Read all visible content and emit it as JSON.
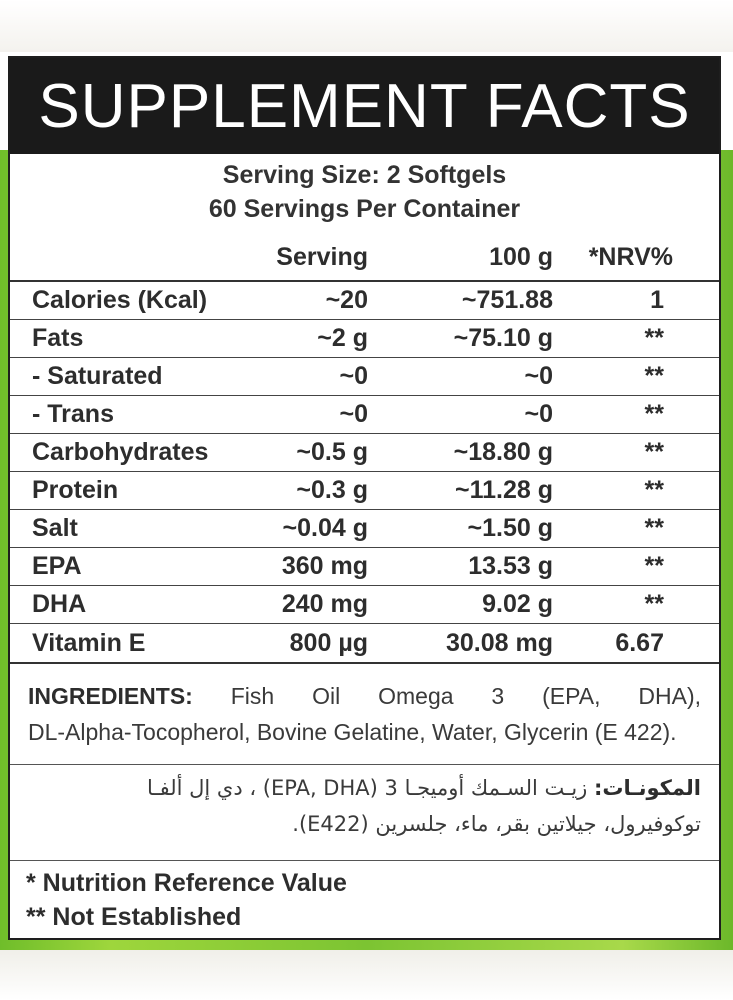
{
  "panel": {
    "title": "SUPPLEMENT FACTS",
    "serving_size": "Serving Size: 2 Softgels",
    "servings_per_container": "60 Servings Per Container"
  },
  "table": {
    "headers": {
      "name": "",
      "serving": "Serving",
      "per100": "100 g",
      "nrv": "*NRV%"
    },
    "rows": [
      {
        "name": "Calories (Kcal)",
        "serving": "~20",
        "per100": "~751.88",
        "nrv": "1"
      },
      {
        "name": "Fats",
        "serving": "~2 g",
        "per100": "~75.10 g",
        "nrv": "**"
      },
      {
        "name": "- Saturated",
        "serving": "~0",
        "per100": "~0",
        "nrv": "**"
      },
      {
        "name": "- Trans",
        "serving": "~0",
        "per100": "~0",
        "nrv": "**"
      },
      {
        "name": "Carbohydrates",
        "serving": "~0.5 g",
        "per100": "~18.80 g",
        "nrv": "**"
      },
      {
        "name": "Protein",
        "serving": "~0.3 g",
        "per100": "~11.28 g",
        "nrv": "**"
      },
      {
        "name": "Salt",
        "serving": "~0.04 g",
        "per100": "~1.50 g",
        "nrv": "**"
      },
      {
        "name": "EPA",
        "serving": "360 mg",
        "per100": "13.53 g",
        "nrv": "**"
      },
      {
        "name": "DHA",
        "serving": "240 mg",
        "per100": "9.02 g",
        "nrv": "**"
      },
      {
        "name": "Vitamin E",
        "serving": "800 µg",
        "per100": "30.08 mg",
        "nrv": "6.67"
      }
    ]
  },
  "ingredients": {
    "label": "INGREDIENTS:",
    "line1": "Fish Oil Omega 3 (EPA, DHA),",
    "line2": "DL-Alpha-Tocopherol, Bovine Gelatine, Water, Glycerin (E 422)."
  },
  "ingredients_ar": {
    "label": "المكونـات:",
    "line1": "زيـت السـمك أوميجـا 3 (EPA, DHA) ، دي إل ألفـا",
    "line2": "توكوفيرول، جيلاتين بقر، ماء، جلسرين (E422)."
  },
  "footnotes": {
    "nrv": "* Nutrition Reference Value",
    "not_established": "** Not Established"
  }
}
